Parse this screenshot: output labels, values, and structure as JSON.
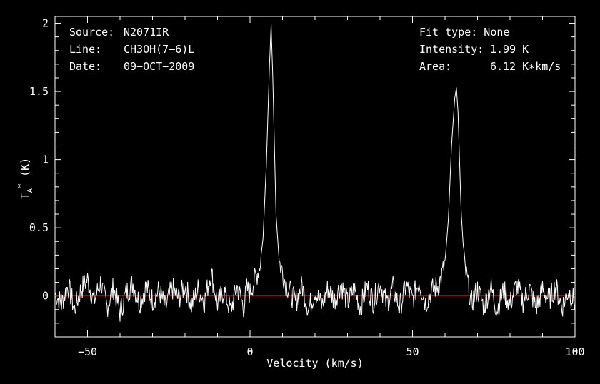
{
  "info": {
    "source_label": "Source:",
    "source_value": "N2071IR",
    "line_label": "Line:",
    "line_value": "CH3OH(7−6)L",
    "date_label": "Date:",
    "date_value": "09−OCT−2009",
    "fit_text": "Fit type: None",
    "intensity_label": "Intensity:",
    "intensity_value": "1.99 K",
    "area_label": "Area:",
    "area_value": "6.12 K∗km/s"
  },
  "chart_data": {
    "type": "line",
    "xlabel": "Velocity (km/s)",
    "ylabel": "T*A (K)",
    "xlim": [
      -60,
      100
    ],
    "ylim": [
      -0.3,
      2.05
    ],
    "x_ticks": [
      -50,
      0,
      50,
      100
    ],
    "x_tick_labels": [
      "−50",
      "0",
      "50",
      "100"
    ],
    "y_ticks": [
      0,
      0.5,
      1,
      1.5,
      2
    ],
    "y_tick_labels": [
      "0",
      "0.5",
      "1",
      "1.5",
      "2"
    ],
    "grid": false,
    "colors": {
      "spectrum": "#ffffff",
      "baseline": "#cc0000",
      "background": "#000000"
    },
    "baseline_y": 0,
    "noise_rms_K": 0.07,
    "peaks": [
      {
        "velocity": 6.5,
        "peak_K": 1.99
      },
      {
        "velocity": 63.5,
        "peak_K": 1.53
      }
    ],
    "series": [
      {
        "values": [
          [
            -60,
            0.02
          ],
          [
            -58,
            -0.06
          ],
          [
            -56,
            0.08
          ],
          [
            -54,
            -0.1
          ],
          [
            -52,
            0.05
          ],
          [
            -50,
            0.12
          ],
          [
            -48,
            -0.04
          ],
          [
            -46,
            0.1
          ],
          [
            -44,
            -0.08
          ],
          [
            -42,
            0.06
          ],
          [
            -40,
            -0.12
          ],
          [
            -38,
            0.03
          ],
          [
            -36,
            0.09
          ],
          [
            -34,
            -0.05
          ],
          [
            -32,
            0.07
          ],
          [
            -30,
            -0.03
          ],
          [
            -28,
            0.04
          ],
          [
            -26,
            -0.09
          ],
          [
            -24,
            0.06
          ],
          [
            -22,
            -0.02
          ],
          [
            -20,
            0.08
          ],
          [
            -18,
            -0.07
          ],
          [
            -16,
            0.05
          ],
          [
            -14,
            -0.04
          ],
          [
            -12,
            0.18
          ],
          [
            -10,
            -0.06
          ],
          [
            -8,
            0.04
          ],
          [
            -6,
            -0.11
          ],
          [
            -4,
            0.07
          ],
          [
            -2,
            -0.08
          ],
          [
            -1,
            0.05
          ],
          [
            0,
            0.02
          ],
          [
            1,
            0.1
          ],
          [
            2,
            0.15
          ],
          [
            3,
            0.22
          ],
          [
            4,
            0.42
          ],
          [
            5,
            0.95
          ],
          [
            6,
            1.7
          ],
          [
            6.5,
            1.99
          ],
          [
            7,
            1.6
          ],
          [
            8,
            0.6
          ],
          [
            9,
            0.25
          ],
          [
            10,
            0.18
          ],
          [
            11,
            0.09
          ],
          [
            12,
            0.05
          ],
          [
            14,
            -0.05
          ],
          [
            16,
            0.08
          ],
          [
            18,
            -0.1
          ],
          [
            20,
            0.04
          ],
          [
            22,
            -0.07
          ],
          [
            24,
            0.06
          ],
          [
            26,
            -0.03
          ],
          [
            28,
            0.09
          ],
          [
            30,
            -0.05
          ],
          [
            32,
            0.05
          ],
          [
            34,
            -0.08
          ],
          [
            36,
            0.07
          ],
          [
            38,
            -0.04
          ],
          [
            40,
            0.1
          ],
          [
            42,
            -0.06
          ],
          [
            44,
            0.06
          ],
          [
            46,
            -0.09
          ],
          [
            48,
            0.08
          ],
          [
            50,
            -0.03
          ],
          [
            52,
            0.11
          ],
          [
            54,
            -0.05
          ],
          [
            56,
            0.04
          ],
          [
            58,
            0.08
          ],
          [
            59,
            0.15
          ],
          [
            60,
            0.25
          ],
          [
            61,
            0.55
          ],
          [
            62,
            1.1
          ],
          [
            63,
            1.45
          ],
          [
            63.5,
            1.53
          ],
          [
            64,
            1.35
          ],
          [
            65,
            0.6
          ],
          [
            66,
            0.22
          ],
          [
            67,
            0.1
          ],
          [
            68,
            -0.06
          ],
          [
            70,
            0.05
          ],
          [
            72,
            -0.08
          ],
          [
            74,
            0.07
          ],
          [
            76,
            -0.1
          ],
          [
            78,
            0.04
          ],
          [
            80,
            -0.06
          ],
          [
            82,
            0.08
          ],
          [
            84,
            -0.04
          ],
          [
            86,
            0.06
          ],
          [
            88,
            -0.09
          ],
          [
            90,
            0.05
          ],
          [
            92,
            -0.03
          ],
          [
            94,
            0.07
          ],
          [
            96,
            -0.08
          ],
          [
            98,
            0.04
          ],
          [
            100,
            -0.05
          ]
        ]
      }
    ]
  }
}
